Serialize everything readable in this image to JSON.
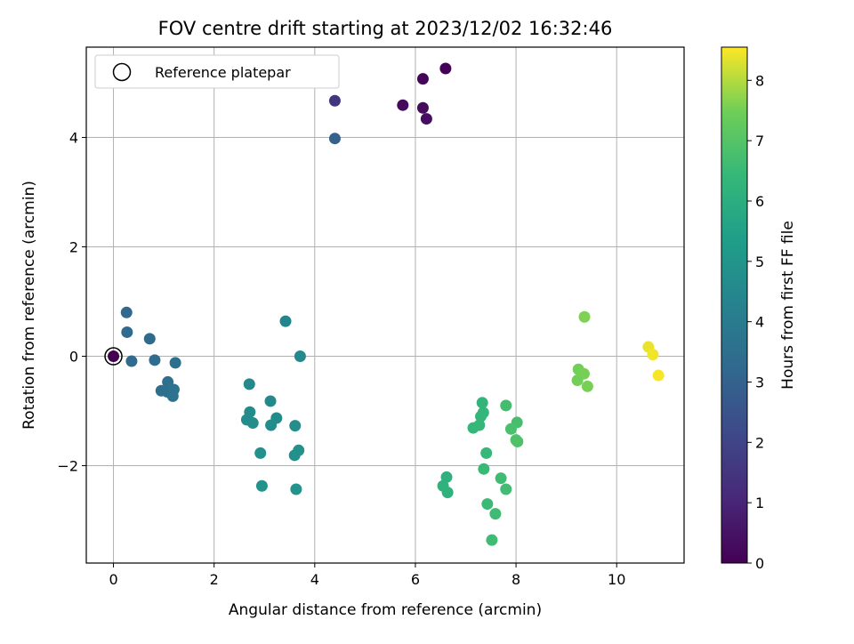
{
  "chart_data": {
    "type": "scatter",
    "title": "FOV centre drift starting at 2023/12/02 16:32:46",
    "xlabel": "Angular distance from reference (arcmin)",
    "ylabel": "Rotation from reference (arcmin)",
    "xlim": [
      -0.54,
      11.34
    ],
    "ylim": [
      -3.78,
      5.65
    ],
    "xticks": [
      0,
      2,
      4,
      6,
      8,
      10
    ],
    "yticks": [
      -2,
      0,
      2,
      4
    ],
    "ytick_labels": [
      "−2",
      "0",
      "2",
      "4"
    ],
    "grid": true,
    "legend": {
      "position": "upper-left",
      "entries": [
        {
          "label": "Reference platepar",
          "marker": "open-circle"
        }
      ]
    },
    "reference_point": {
      "x": 0,
      "y": 0
    },
    "colorbar": {
      "label": "Hours from first FF file",
      "colormap": "viridis",
      "range": [
        0,
        8.55
      ],
      "ticks": [
        0,
        1,
        2,
        3,
        4,
        5,
        6,
        7,
        8
      ]
    },
    "points": [
      {
        "x": 0.0,
        "y": 0.0,
        "hours": 0.0
      },
      {
        "x": 6.6,
        "y": 5.26,
        "hours": 0.05
      },
      {
        "x": 6.15,
        "y": 5.07,
        "hours": 0.15
      },
      {
        "x": 5.75,
        "y": 4.59,
        "hours": 0.25
      },
      {
        "x": 6.15,
        "y": 4.54,
        "hours": 0.3
      },
      {
        "x": 6.22,
        "y": 4.34,
        "hours": 0.35
      },
      {
        "x": 4.4,
        "y": 4.67,
        "hours": 1.5
      },
      {
        "x": 4.4,
        "y": 3.98,
        "hours": 3.0
      },
      {
        "x": 0.26,
        "y": 0.8,
        "hours": 3.2
      },
      {
        "x": 0.27,
        "y": 0.44,
        "hours": 3.3
      },
      {
        "x": 0.72,
        "y": 0.32,
        "hours": 3.35
      },
      {
        "x": 0.36,
        "y": -0.09,
        "hours": 3.35
      },
      {
        "x": 0.82,
        "y": -0.07,
        "hours": 3.4
      },
      {
        "x": 1.23,
        "y": -0.12,
        "hours": 3.45
      },
      {
        "x": 1.08,
        "y": -0.47,
        "hours": 3.5
      },
      {
        "x": 0.95,
        "y": -0.63,
        "hours": 3.5
      },
      {
        "x": 1.07,
        "y": -0.65,
        "hours": 3.55
      },
      {
        "x": 1.2,
        "y": -0.61,
        "hours": 3.6
      },
      {
        "x": 1.18,
        "y": -0.73,
        "hours": 3.6
      },
      {
        "x": 3.42,
        "y": 0.64,
        "hours": 4.4
      },
      {
        "x": 3.71,
        "y": 0.0,
        "hours": 4.5
      },
      {
        "x": 2.7,
        "y": -0.51,
        "hours": 4.5
      },
      {
        "x": 3.12,
        "y": -0.82,
        "hours": 4.55
      },
      {
        "x": 2.71,
        "y": -1.02,
        "hours": 4.6
      },
      {
        "x": 3.24,
        "y": -1.13,
        "hours": 4.6
      },
      {
        "x": 2.65,
        "y": -1.16,
        "hours": 4.65
      },
      {
        "x": 2.77,
        "y": -1.22,
        "hours": 4.7
      },
      {
        "x": 3.13,
        "y": -1.26,
        "hours": 4.7
      },
      {
        "x": 3.61,
        "y": -1.27,
        "hours": 4.75
      },
      {
        "x": 3.68,
        "y": -1.72,
        "hours": 4.8
      },
      {
        "x": 2.92,
        "y": -1.77,
        "hours": 4.8
      },
      {
        "x": 3.6,
        "y": -1.81,
        "hours": 4.85
      },
      {
        "x": 2.95,
        "y": -2.37,
        "hours": 4.9
      },
      {
        "x": 3.63,
        "y": -2.43,
        "hours": 4.95
      },
      {
        "x": 6.62,
        "y": -2.21,
        "hours": 6.1
      },
      {
        "x": 6.55,
        "y": -2.37,
        "hours": 6.15
      },
      {
        "x": 6.64,
        "y": -2.49,
        "hours": 6.2
      },
      {
        "x": 7.33,
        "y": -0.85,
        "hours": 6.3
      },
      {
        "x": 7.35,
        "y": -1.03,
        "hours": 6.35
      },
      {
        "x": 7.3,
        "y": -1.1,
        "hours": 6.35
      },
      {
        "x": 7.27,
        "y": -1.26,
        "hours": 6.4
      },
      {
        "x": 7.15,
        "y": -1.31,
        "hours": 6.4
      },
      {
        "x": 7.41,
        "y": -1.77,
        "hours": 6.45
      },
      {
        "x": 7.36,
        "y": -2.06,
        "hours": 6.5
      },
      {
        "x": 7.43,
        "y": -2.7,
        "hours": 6.55
      },
      {
        "x": 7.59,
        "y": -2.88,
        "hours": 6.6
      },
      {
        "x": 7.52,
        "y": -3.36,
        "hours": 6.6
      },
      {
        "x": 7.8,
        "y": -0.9,
        "hours": 6.7
      },
      {
        "x": 8.02,
        "y": -1.21,
        "hours": 6.75
      },
      {
        "x": 7.9,
        "y": -1.33,
        "hours": 6.8
      },
      {
        "x": 8.03,
        "y": -1.56,
        "hours": 6.85
      },
      {
        "x": 8.0,
        "y": -1.53,
        "hours": 6.9
      },
      {
        "x": 7.7,
        "y": -2.23,
        "hours": 6.6
      },
      {
        "x": 7.8,
        "y": -2.43,
        "hours": 6.65
      },
      {
        "x": 9.36,
        "y": 0.72,
        "hours": 7.6
      },
      {
        "x": 9.24,
        "y": -0.24,
        "hours": 7.5
      },
      {
        "x": 9.35,
        "y": -0.32,
        "hours": 7.55
      },
      {
        "x": 9.22,
        "y": -0.44,
        "hours": 7.5
      },
      {
        "x": 9.42,
        "y": -0.55,
        "hours": 7.55
      },
      {
        "x": 10.63,
        "y": 0.17,
        "hours": 8.4
      },
      {
        "x": 10.72,
        "y": 0.03,
        "hours": 8.45
      },
      {
        "x": 10.83,
        "y": -0.35,
        "hours": 8.5
      }
    ]
  }
}
